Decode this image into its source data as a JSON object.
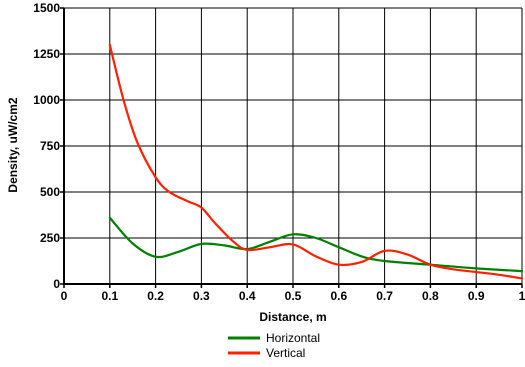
{
  "chart_data": {
    "type": "line",
    "xlabel": "Distance, m",
    "ylabel": "Density, uW/cm2",
    "xlim": [
      0,
      1
    ],
    "ylim": [
      0,
      1500
    ],
    "x_ticks": [
      "0",
      "0.1",
      "0.2",
      "0.3",
      "0.4",
      "0.5",
      "0.6",
      "0.7",
      "0.8",
      "0.9",
      "1"
    ],
    "y_ticks": [
      "0",
      "250",
      "500",
      "750",
      "1000",
      "1250",
      "1500"
    ],
    "x_grid": [
      0,
      0.1,
      0.2,
      0.3,
      0.4,
      0.5,
      0.6,
      0.7,
      0.8,
      0.9,
      1.0
    ],
    "y_grid": [
      0,
      250,
      500,
      750,
      1000,
      1250,
      1500
    ],
    "grid": true,
    "legend_position": "bottom-center",
    "series": [
      {
        "name": "Horizontal",
        "color": "#008000",
        "x": [
          0.1,
          0.15,
          0.2,
          0.25,
          0.3,
          0.35,
          0.4,
          0.45,
          0.5,
          0.55,
          0.6,
          0.65,
          0.7,
          0.8,
          0.9,
          1.0
        ],
        "y": [
          360,
          220,
          148,
          175,
          218,
          210,
          190,
          230,
          270,
          250,
          200,
          150,
          125,
          105,
          85,
          70
        ]
      },
      {
        "name": "Vertical",
        "color": "#ff2000",
        "x": [
          0.1,
          0.13,
          0.16,
          0.2,
          0.23,
          0.27,
          0.3,
          0.33,
          0.37,
          0.4,
          0.45,
          0.5,
          0.55,
          0.6,
          0.65,
          0.7,
          0.75,
          0.8,
          0.85,
          0.9,
          0.95,
          1.0
        ],
        "y": [
          1300,
          1000,
          770,
          580,
          500,
          450,
          415,
          330,
          230,
          185,
          200,
          215,
          150,
          105,
          120,
          180,
          160,
          105,
          80,
          65,
          50,
          30
        ]
      }
    ]
  }
}
